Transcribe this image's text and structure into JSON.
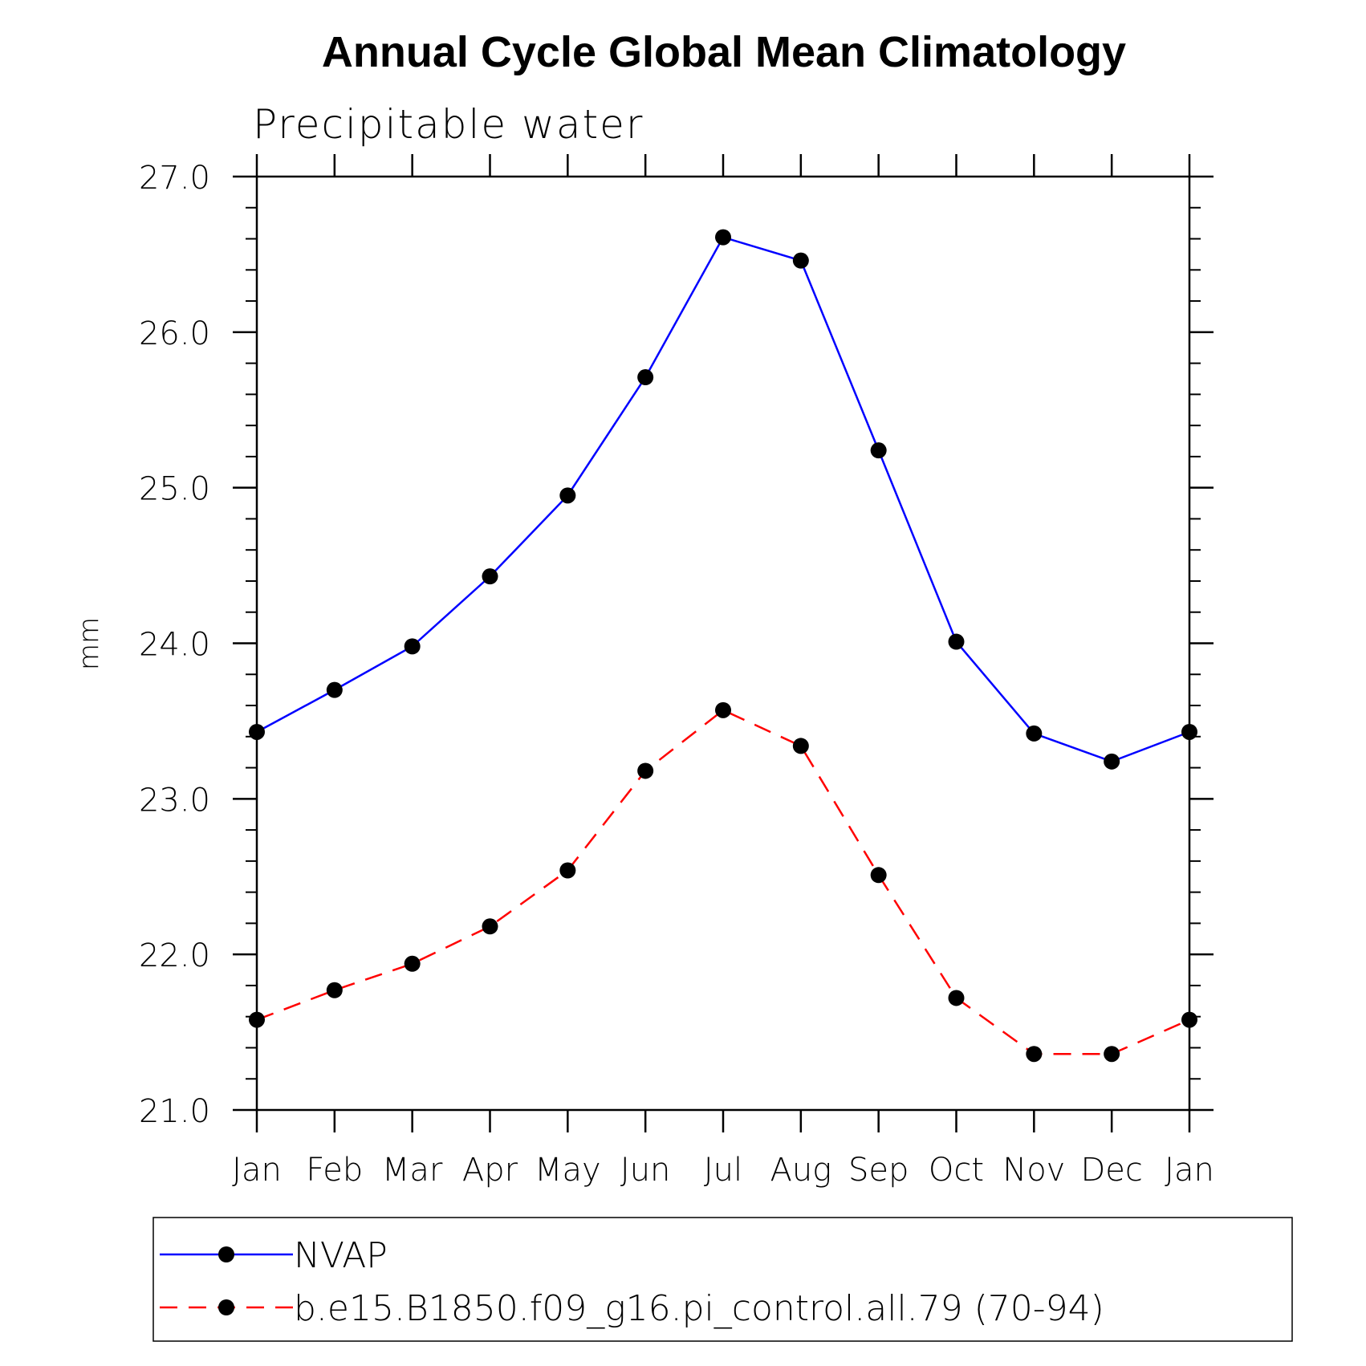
{
  "chart_data": {
    "type": "line",
    "title": "Annual Cycle Global Mean Climatology",
    "subtitle": "Precipitable water",
    "xlabel": "",
    "ylabel": "mm",
    "categories": [
      "Jan",
      "Feb",
      "Mar",
      "Apr",
      "May",
      "Jun",
      "Jul",
      "Aug",
      "Sep",
      "Oct",
      "Nov",
      "Dec",
      "Jan"
    ],
    "ylim": [
      21.0,
      27.0
    ],
    "yticks": [
      "21.0",
      "22.0",
      "23.0",
      "24.0",
      "25.0",
      "26.0",
      "27.0"
    ],
    "y_minor_step": 0.2,
    "grid": false,
    "legend_position": "bottom",
    "series": [
      {
        "name": "NVAP",
        "color": "#0000ff",
        "line_style": "solid",
        "marker": "filled-circle",
        "values": [
          23.43,
          23.7,
          23.98,
          24.43,
          24.95,
          25.71,
          26.61,
          26.46,
          25.24,
          24.01,
          23.42,
          23.24,
          23.43
        ]
      },
      {
        "name": "b.e15.B1850.f09_g16.pi_control.all.79 (70-94)",
        "color": "#ff0000",
        "line_style": "dashed",
        "marker": "filled-circle",
        "values": [
          21.58,
          21.77,
          21.94,
          22.18,
          22.54,
          23.18,
          23.57,
          23.34,
          22.51,
          21.72,
          21.36,
          21.36,
          21.58
        ]
      }
    ]
  }
}
